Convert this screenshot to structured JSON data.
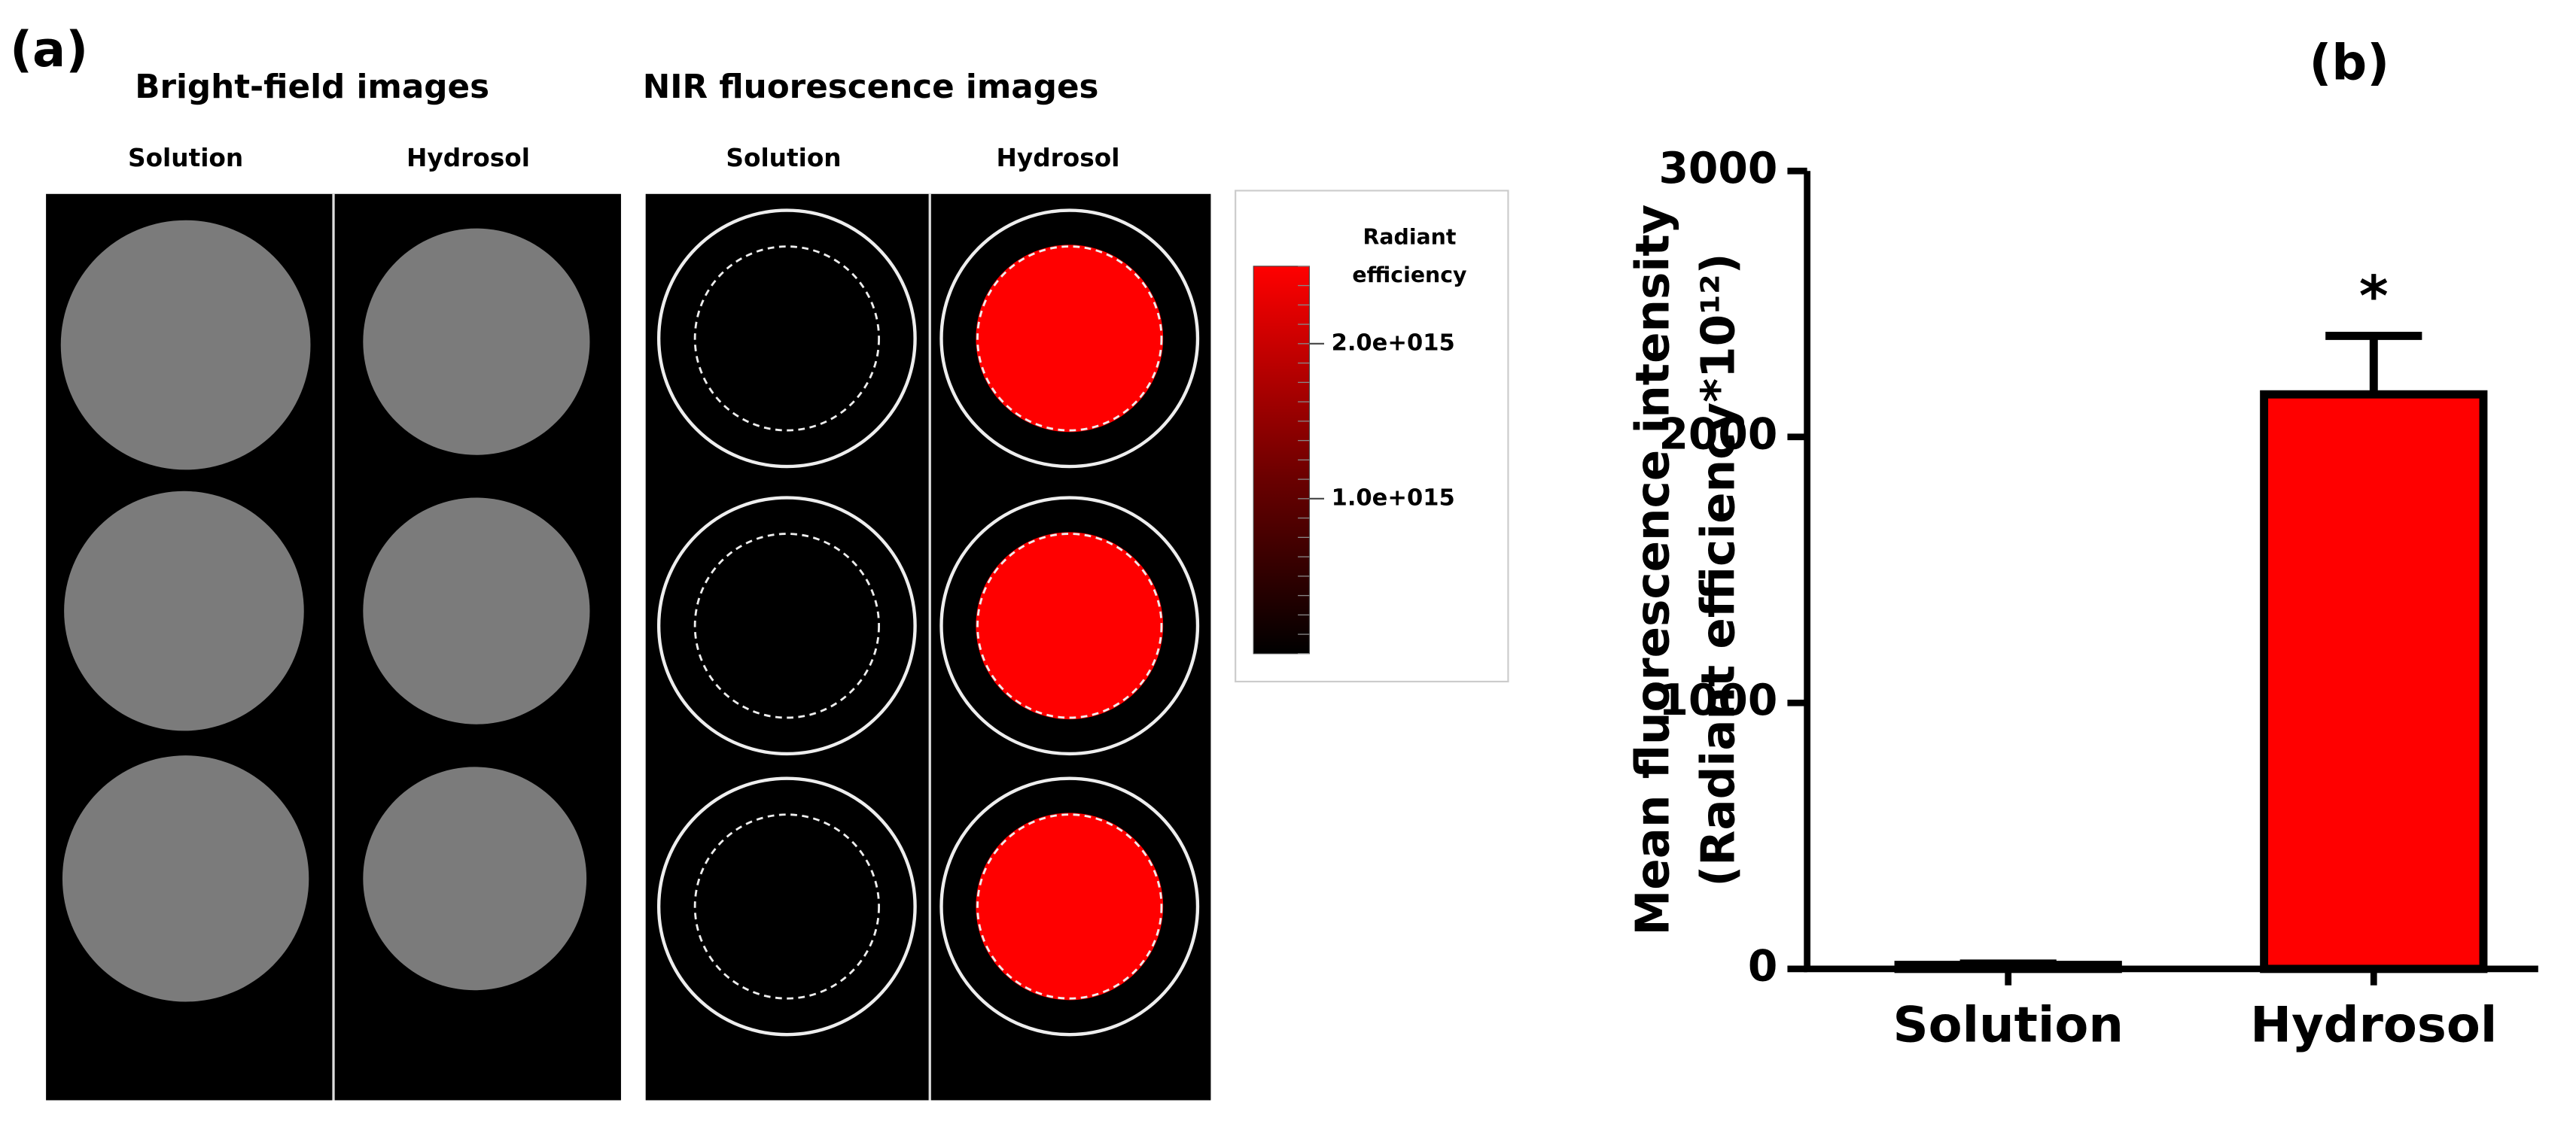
{
  "panel_a": {
    "label": "(a)",
    "bright_field": {
      "title": "Bright-field images",
      "columns": [
        "Solution",
        "Hydrosol"
      ]
    },
    "nir": {
      "title": "NIR fluorescence images",
      "columns": [
        "Solution",
        "Hydrosol"
      ]
    },
    "colorbar": {
      "title_lines": [
        "Radiant",
        "efficiency"
      ],
      "clim": [
        0,
        2500000000000000.0
      ],
      "ticks": [
        {
          "value": 2000000000000000.0,
          "label": "2.0e+015"
        },
        {
          "value": 1000000000000000.0,
          "label": "1.0e+015"
        }
      ]
    }
  },
  "chart_data": {
    "type": "bar",
    "panel_label": "(b)",
    "y_label": "Mean fluorescence intensity",
    "y_label_2": "(Radiant efficiency*10¹²)",
    "categories": [
      "Solution",
      "Hydrosol"
    ],
    "values": [
      15,
      2160
    ],
    "errors": [
      5,
      220
    ],
    "color": "#ff0000",
    "annotations": [
      {
        "category": "Hydrosol",
        "text": "*"
      }
    ],
    "ylim": [
      0,
      3000
    ],
    "yticks": [
      0,
      1000,
      2000,
      3000
    ]
  }
}
